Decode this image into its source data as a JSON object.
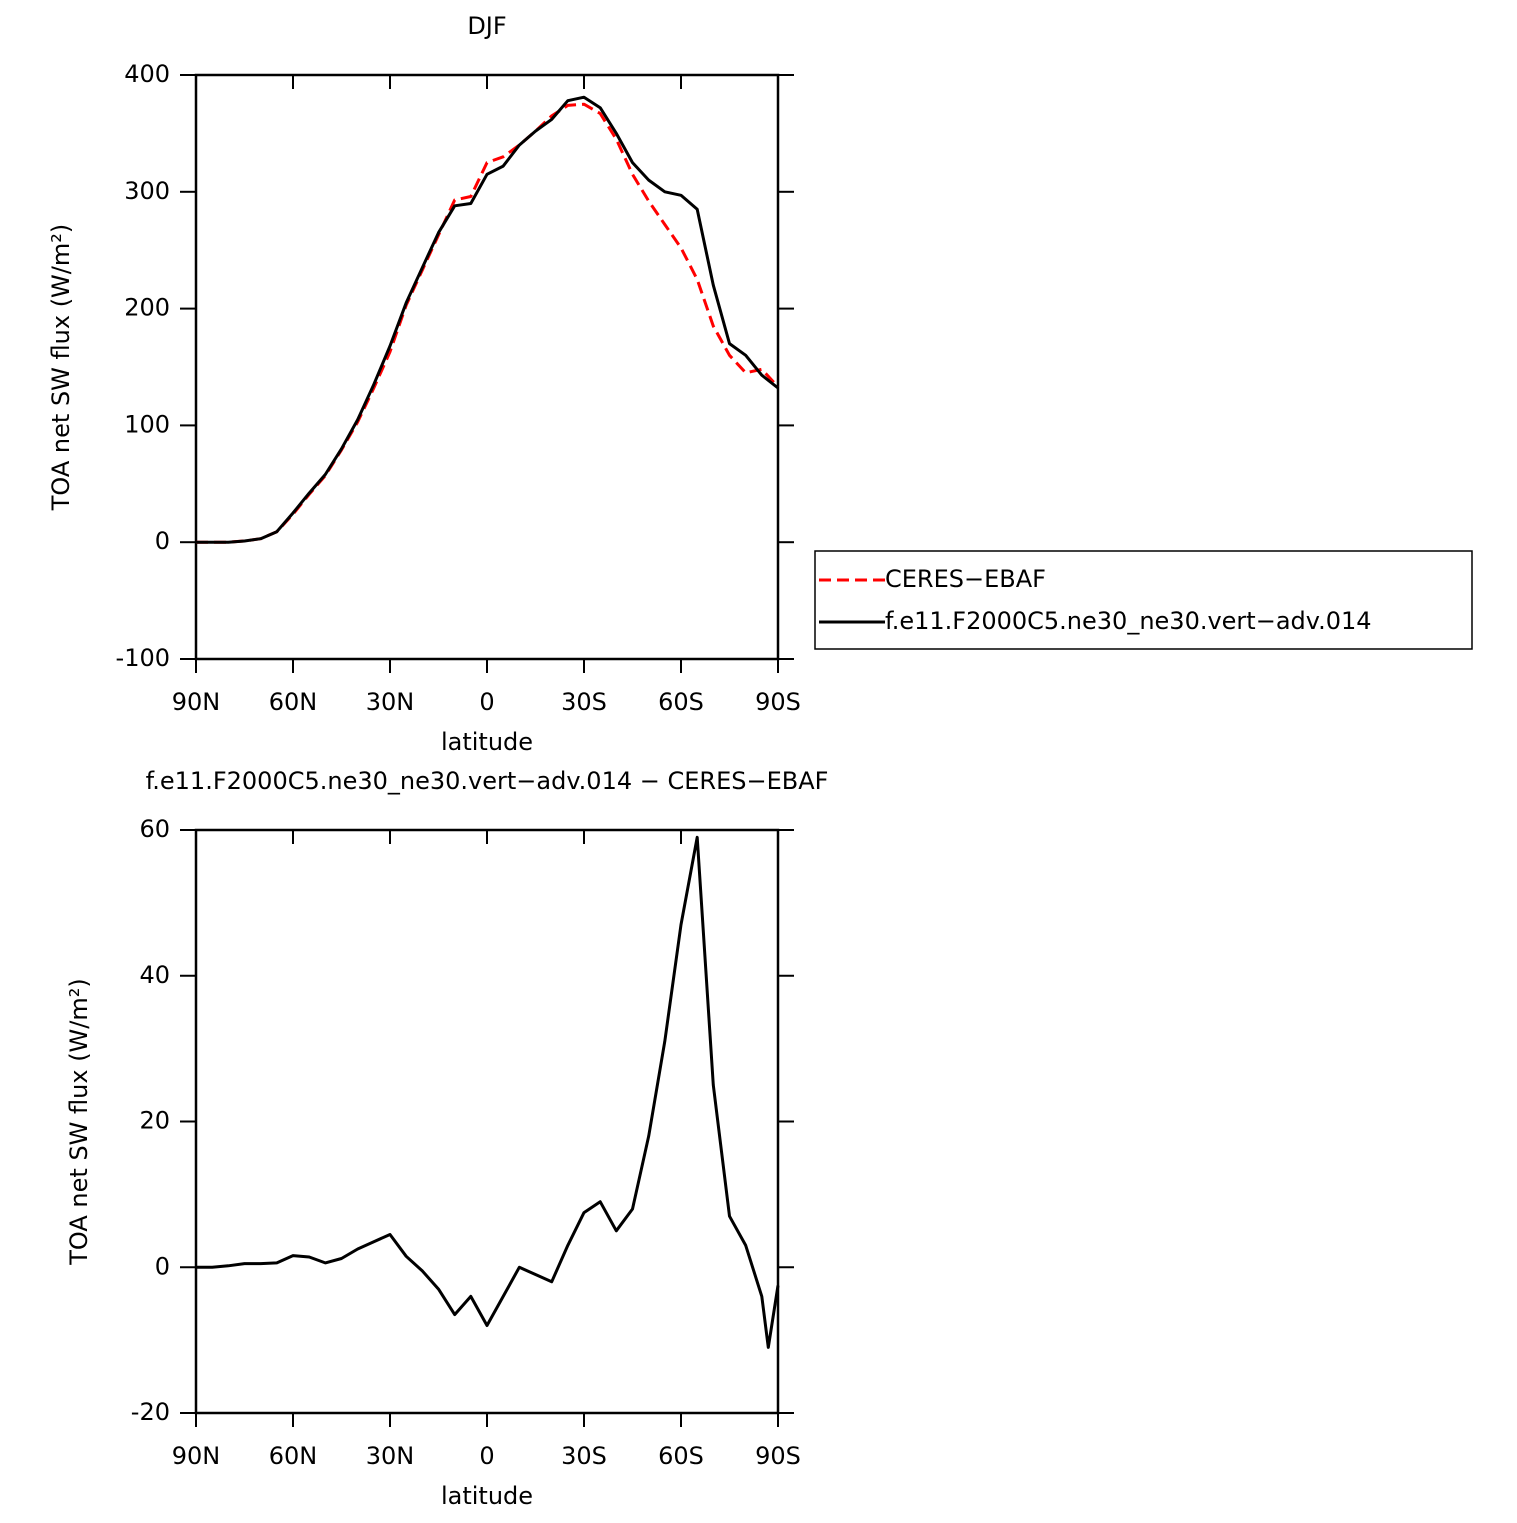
{
  "chart_data": [
    {
      "type": "line",
      "title": "DJF",
      "xlabel": "latitude",
      "ylabel": "TOA net SW flux (W/m²)",
      "x": [
        90,
        85,
        80,
        75,
        70,
        65,
        60,
        55,
        50,
        45,
        40,
        35,
        30,
        25,
        20,
        15,
        10,
        5,
        0,
        -5,
        -10,
        -15,
        -20,
        -25,
        -30,
        -35,
        -40,
        -45,
        -50,
        -55,
        -60,
        -65,
        -70,
        -75,
        -80,
        -85,
        -90
      ],
      "xlim": [
        90,
        -90
      ],
      "xticks": [
        {
          "value": 90,
          "label": "90N"
        },
        {
          "value": 60,
          "label": "60N"
        },
        {
          "value": 30,
          "label": "30N"
        },
        0,
        {
          "value": -30,
          "label": "30S"
        },
        {
          "value": -60,
          "label": "60S"
        },
        {
          "value": -90,
          "label": "90S"
        }
      ],
      "ylim": [
        -100,
        400
      ],
      "yticks": [
        -100,
        0,
        100,
        200,
        300,
        400
      ],
      "legend": "right",
      "series": [
        {
          "name": "CERES−EBAF",
          "color": "#ff0000",
          "line_style": "dashed",
          "values": [
            0,
            0,
            0,
            1,
            3,
            9,
            24,
            41,
            57,
            79,
            103,
            132,
            163,
            203,
            233,
            263,
            293,
            296,
            325,
            330,
            340,
            352,
            365,
            374,
            375,
            367,
            345,
            315,
            292,
            272,
            252,
            225,
            185,
            160,
            145,
            148,
            133
          ]
        },
        {
          "name": "f.e11.F2000C5.ne30_ne30.vert−adv.014",
          "color": "#000000",
          "line_style": "solid",
          "values": [
            0,
            0,
            0,
            1,
            3,
            9,
            25,
            42,
            58,
            80,
            105,
            135,
            168,
            205,
            235,
            265,
            288,
            290,
            315,
            322,
            340,
            352,
            362,
            378,
            381,
            372,
            350,
            325,
            310,
            300,
            297,
            285,
            220,
            170,
            160,
            143,
            132
          ]
        }
      ]
    },
    {
      "type": "line",
      "title": "f.e11.F2000C5.ne30_ne30.vert−adv.014 − CERES−EBAF",
      "xlabel": "latitude",
      "ylabel": "TOA net SW flux (W/m²)",
      "x": [
        90,
        85,
        80,
        75,
        70,
        65,
        60,
        55,
        50,
        45,
        40,
        35,
        30,
        25,
        20,
        15,
        10,
        5,
        0,
        -5,
        -10,
        -15,
        -20,
        -25,
        -30,
        -35,
        -40,
        -45,
        -50,
        -55,
        -60,
        -65,
        -70,
        -75,
        -80,
        -85,
        -87,
        -90
      ],
      "xlim": [
        90,
        -90
      ],
      "xticks": [
        {
          "value": 90,
          "label": "90N"
        },
        {
          "value": 60,
          "label": "60N"
        },
        {
          "value": 30,
          "label": "30N"
        },
        0,
        {
          "value": -30,
          "label": "30S"
        },
        {
          "value": -60,
          "label": "60S"
        },
        {
          "value": -90,
          "label": "90S"
        }
      ],
      "ylim": [
        -20,
        60
      ],
      "yticks": [
        -20,
        0,
        20,
        40,
        60
      ],
      "series": [
        {
          "color": "#000000",
          "line_style": "solid",
          "values": [
            0,
            0,
            0.2,
            0.5,
            0.5,
            0.6,
            1.6,
            1.4,
            0.6,
            1.2,
            2.5,
            3.5,
            4.5,
            1.5,
            -0.5,
            -3,
            -6.5,
            -4,
            -8,
            -4,
            0,
            -1,
            -2,
            3,
            7.5,
            9,
            5,
            8,
            18,
            31,
            47,
            59,
            25,
            7,
            3,
            -4,
            -11,
            -2.5
          ]
        }
      ]
    }
  ]
}
